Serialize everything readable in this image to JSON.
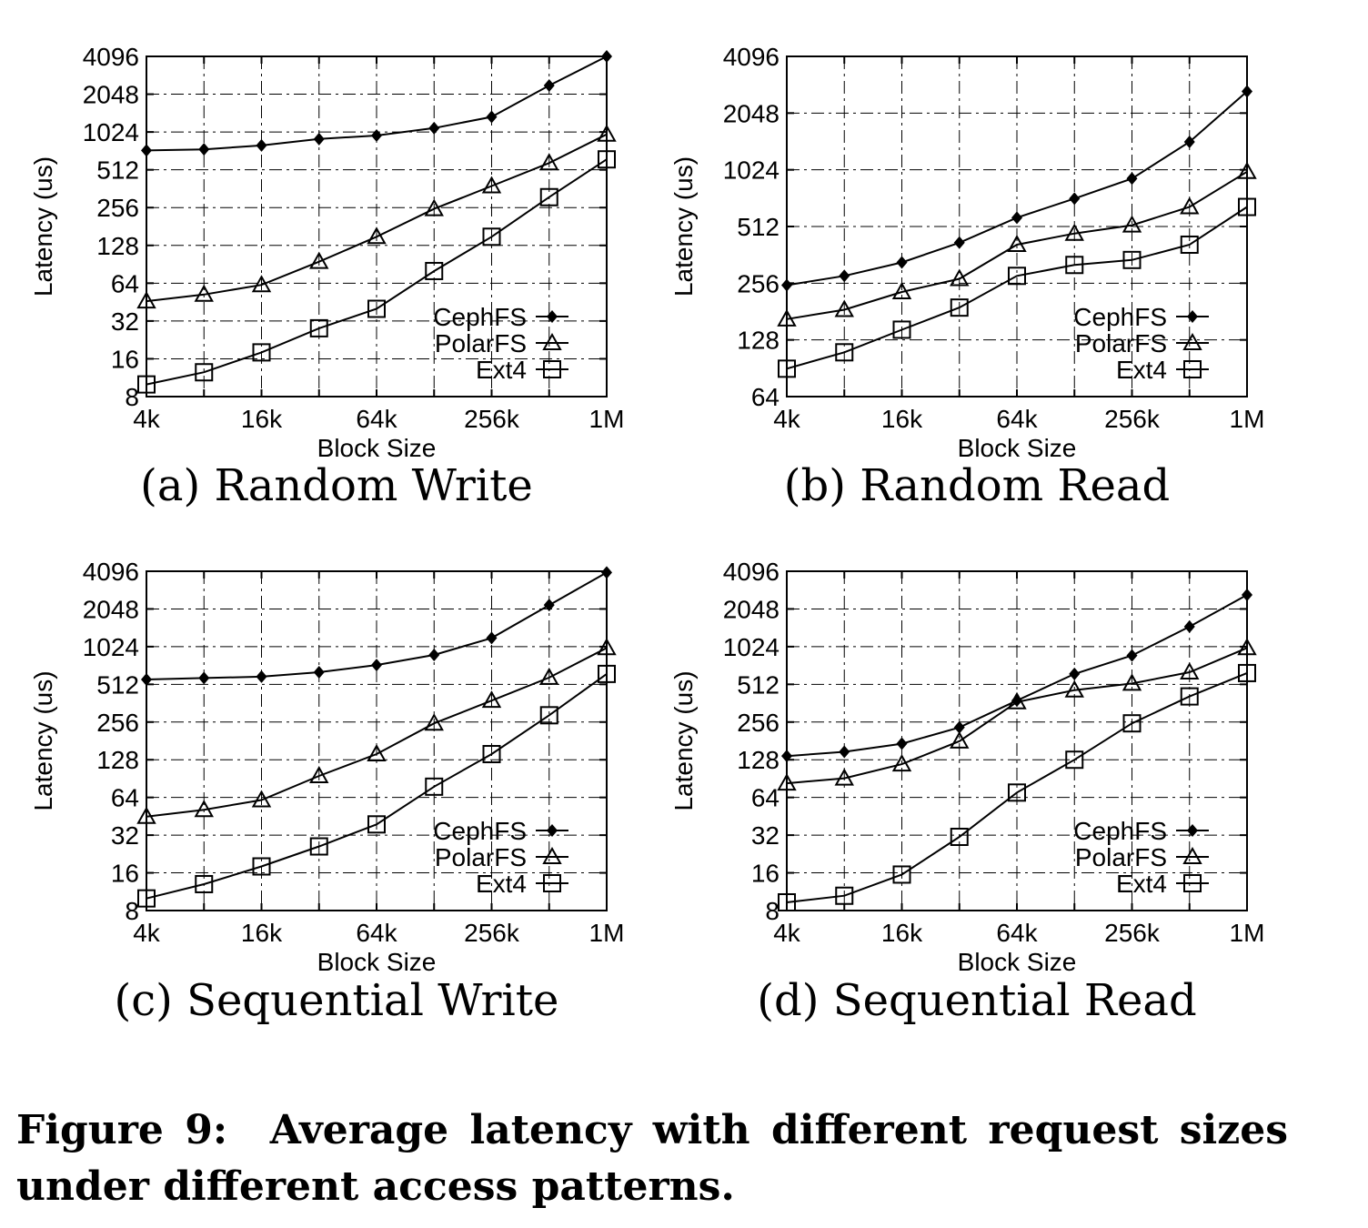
{
  "chart_data": [
    {
      "type": "line",
      "title": "(a) Random Write",
      "xlabel": "Block Size",
      "ylabel": "Latency (us)",
      "x_scale": "log2",
      "y_scale": "log2",
      "categories": [
        "4k",
        "8k",
        "16k",
        "32k",
        "64k",
        "128k",
        "256k",
        "512k",
        "1M"
      ],
      "x_tick_labels": [
        "4k",
        "16k",
        "64k",
        "256k",
        "1M"
      ],
      "y_tick_labels": [
        "8",
        "16",
        "32",
        "64",
        "128",
        "256",
        "512",
        "1024",
        "2048",
        "4096"
      ],
      "ylim": [
        8,
        4096
      ],
      "legend_position": "bottom-right",
      "grid": true,
      "series": [
        {
          "name": "CephFS",
          "marker": "filled-diamond",
          "values": [
            730,
            745,
            800,
            900,
            960,
            1100,
            1350,
            2400,
            4096
          ]
        },
        {
          "name": "PolarFS",
          "marker": "open-triangle",
          "values": [
            46,
            52,
            62,
            95,
            150,
            250,
            380,
            580,
            980
          ]
        },
        {
          "name": "Ext4",
          "marker": "open-square",
          "values": [
            10,
            12.5,
            18,
            28,
            40,
            80,
            150,
            310,
            620
          ]
        }
      ]
    },
    {
      "type": "line",
      "title": "(b) Random Read",
      "xlabel": "Block Size",
      "ylabel": "Latency (us)",
      "x_scale": "log2",
      "y_scale": "log2",
      "categories": [
        "4k",
        "8k",
        "16k",
        "32k",
        "64k",
        "128k",
        "256k",
        "512k",
        "1M"
      ],
      "x_tick_labels": [
        "4k",
        "16k",
        "64k",
        "256k",
        "1M"
      ],
      "y_tick_labels": [
        "64",
        "128",
        "256",
        "512",
        "1024",
        "2048",
        "4096"
      ],
      "ylim": [
        64,
        4096
      ],
      "legend_position": "bottom-right",
      "grid": true,
      "series": [
        {
          "name": "CephFS",
          "marker": "filled-diamond",
          "values": [
            250,
            280,
            330,
            420,
            570,
            720,
            920,
            1440,
            2670
          ]
        },
        {
          "name": "PolarFS",
          "marker": "open-triangle",
          "values": [
            165,
            185,
            230,
            270,
            410,
            470,
            520,
            650,
            1000
          ]
        },
        {
          "name": "Ext4",
          "marker": "open-square",
          "values": [
            90,
            110,
            145,
            190,
            280,
            320,
            340,
            410,
            650
          ]
        }
      ]
    },
    {
      "type": "line",
      "title": "(c) Sequential Write",
      "xlabel": "Block Size",
      "ylabel": "Latency (us)",
      "x_scale": "log2",
      "y_scale": "log2",
      "categories": [
        "4k",
        "8k",
        "16k",
        "32k",
        "64k",
        "128k",
        "256k",
        "512k",
        "1M"
      ],
      "x_tick_labels": [
        "4k",
        "16k",
        "64k",
        "256k",
        "1M"
      ],
      "y_tick_labels": [
        "8",
        "16",
        "32",
        "64",
        "128",
        "256",
        "512",
        "1024",
        "2048",
        "4096"
      ],
      "ylim": [
        8,
        4096
      ],
      "legend_position": "bottom-right",
      "grid": true,
      "series": [
        {
          "name": "CephFS",
          "marker": "filled-diamond",
          "values": [
            560,
            575,
            590,
            640,
            730,
            880,
            1200,
            2200,
            4000
          ]
        },
        {
          "name": "PolarFS",
          "marker": "open-triangle",
          "values": [
            45,
            51,
            61,
            95,
            142,
            250,
            380,
            580,
            1000
          ]
        },
        {
          "name": "Ext4",
          "marker": "open-square",
          "values": [
            10,
            13,
            18,
            26,
            39,
            78,
            142,
            290,
            620
          ]
        }
      ]
    },
    {
      "type": "line",
      "title": "(d) Sequential Read",
      "xlabel": "Block Size",
      "ylabel": "Latency (us)",
      "x_scale": "log2",
      "y_scale": "log2",
      "categories": [
        "4k",
        "8k",
        "16k",
        "32k",
        "64k",
        "128k",
        "256k",
        "512k",
        "1M"
      ],
      "x_tick_labels": [
        "4k",
        "16k",
        "64k",
        "256k",
        "1M"
      ],
      "y_tick_labels": [
        "8",
        "16",
        "32",
        "64",
        "128",
        "256",
        "512",
        "1024",
        "2048",
        "4096"
      ],
      "ylim": [
        8,
        4096
      ],
      "legend_position": "bottom-right",
      "grid": true,
      "series": [
        {
          "name": "CephFS",
          "marker": "filled-diamond",
          "values": [
            137,
            148,
            172,
            232,
            380,
            620,
            870,
            1480,
            2650
          ]
        },
        {
          "name": "PolarFS",
          "marker": "open-triangle",
          "values": [
            83,
            91,
            118,
            180,
            370,
            460,
            520,
            640,
            1000
          ]
        },
        {
          "name": "Ext4",
          "marker": "open-square",
          "values": [
            9.3,
            10.5,
            15.5,
            31,
            70,
            128,
            250,
            410,
            630
          ]
        }
      ]
    }
  ],
  "caption": {
    "label": "Figure 9:",
    "text": "Average latency with different request sizes under different access patterns."
  }
}
